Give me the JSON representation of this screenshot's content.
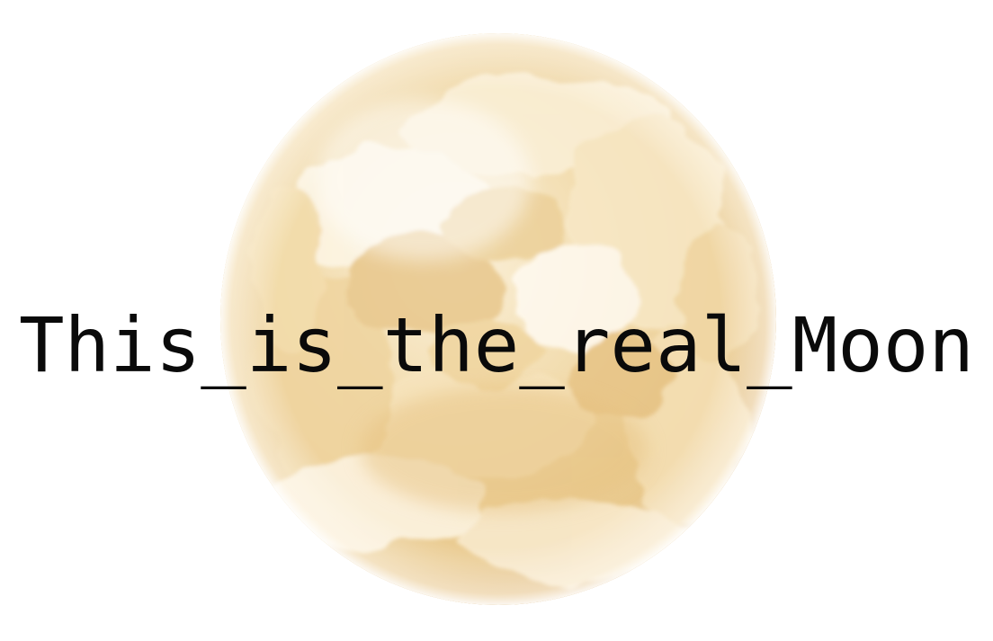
{
  "caption": {
    "text": "This_is_the_real_Moon"
  },
  "moon": {
    "icon": "moon-painting",
    "colors": {
      "highlight": "#fdf7ea",
      "light": "#f4e3bd",
      "mid": "#eccd94",
      "dark": "#dfb676"
    }
  }
}
